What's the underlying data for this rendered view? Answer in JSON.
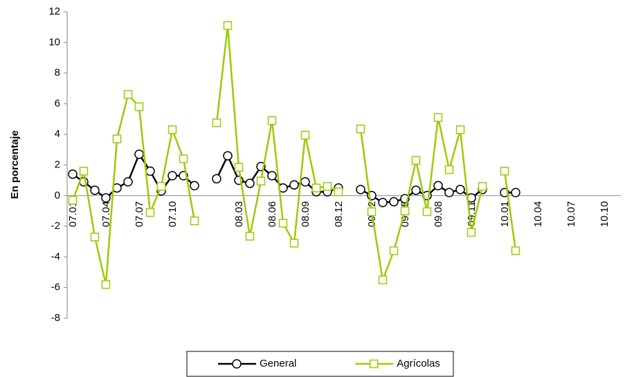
{
  "chart_data": {
    "type": "line",
    "y_label": "En porcentaje",
    "categories": [
      "07.01",
      null,
      null,
      "07.04",
      null,
      null,
      "07.07",
      null,
      null,
      "07.10",
      null,
      null,
      null,
      null,
      null,
      "08.03",
      null,
      null,
      "08.06",
      null,
      null,
      "08.09",
      null,
      null,
      "08.12",
      null,
      null,
      "09.02",
      null,
      null,
      "09.05",
      null,
      null,
      "09.08",
      null,
      null,
      "09.11",
      null,
      null,
      "10.01",
      null,
      null,
      "10.04",
      null,
      null,
      "10.07",
      null,
      null,
      "10.10",
      null
    ],
    "series": [
      {
        "name": "General",
        "color": "#000000",
        "marker": "circle",
        "values": [
          1.4,
          0.9,
          0.35,
          -0.15,
          0.5,
          0.9,
          2.7,
          1.6,
          0.3,
          1.3,
          1.3,
          0.65,
          null,
          1.1,
          2.6,
          1.0,
          0.8,
          1.9,
          1.3,
          0.5,
          0.7,
          0.9,
          0.25,
          0.25,
          0.5,
          null,
          0.4,
          0.0,
          -0.45,
          -0.4,
          -0.2,
          0.35,
          0.0,
          0.65,
          0.2,
          0.4,
          -0.15,
          0.4,
          null,
          0.2,
          0.2,
          null,
          null,
          null,
          null,
          null,
          null,
          null,
          null,
          null
        ]
      },
      {
        "name": "Agrícolas",
        "color": "#99cc00",
        "marker": "square",
        "values": [
          -0.3,
          1.6,
          -2.7,
          -5.8,
          3.7,
          6.6,
          5.8,
          -1.1,
          0.6,
          4.3,
          2.4,
          -1.65,
          null,
          4.75,
          11.1,
          1.85,
          -2.65,
          0.95,
          4.9,
          -1.8,
          -3.1,
          3.95,
          0.5,
          0.6,
          0.25,
          null,
          4.35,
          -1.05,
          -5.5,
          -3.6,
          -1.0,
          2.3,
          -1.05,
          5.1,
          1.7,
          4.3,
          -2.4,
          0.6,
          null,
          1.6,
          -3.6,
          null,
          null,
          null,
          null,
          null,
          null,
          null,
          null,
          null
        ]
      }
    ],
    "ylim": [
      -8,
      12
    ],
    "yticks": [
      -8,
      -6,
      -4,
      -2,
      0,
      2,
      4,
      6,
      8,
      10,
      12
    ],
    "grid": false,
    "legend": "bottom"
  }
}
